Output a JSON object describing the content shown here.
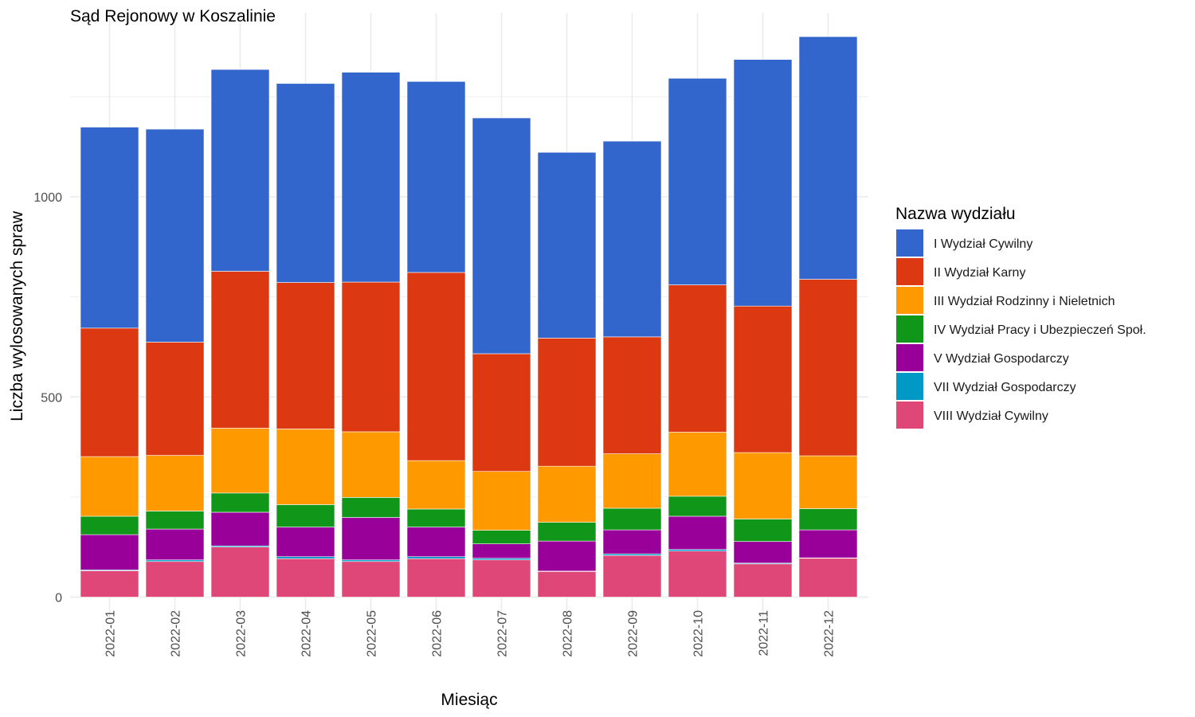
{
  "chart_data": {
    "type": "bar",
    "stacked": true,
    "title": "Sąd Rejonowy w Koszalinie",
    "xlabel": "Miesiąc",
    "ylabel": "Liczba wylosowanych spraw",
    "ylim": [
      0,
      1400
    ],
    "y_ticks": [
      0,
      500,
      1000
    ],
    "grid": true,
    "legend_position": "right",
    "legend_title": "Nazwa wydziału",
    "categories": [
      "2022-01",
      "2022-02",
      "2022-03",
      "2022-04",
      "2022-05",
      "2022-06",
      "2022-07",
      "2022-08",
      "2022-09",
      "2022-10",
      "2022-11",
      "2022-12"
    ],
    "series": [
      {
        "name": "VIII Wydział Cywilny",
        "color": "#de4778",
        "values": [
          66,
          89,
          125,
          96,
          89,
          96,
          93,
          64,
          104,
          115,
          83,
          97
        ]
      },
      {
        "name": "VII Wydział Gospodarczy",
        "color": "#0099c6",
        "values": [
          2,
          4,
          3,
          5,
          4,
          5,
          4,
          1,
          4,
          4,
          2,
          1
        ]
      },
      {
        "name": "V Wydział Gospodarczy",
        "color": "#990099",
        "values": [
          88,
          77,
          84,
          74,
          106,
          74,
          36,
          75,
          60,
          83,
          54,
          70
        ]
      },
      {
        "name": "IV Wydział Pracy i Ubezpieczeń Społ.",
        "color": "#109618",
        "values": [
          46,
          45,
          48,
          56,
          50,
          45,
          34,
          47,
          54,
          50,
          56,
          53
        ]
      },
      {
        "name": "III Wydział Rodzinny i Nieletnich",
        "color": "#ff9900",
        "values": [
          149,
          139,
          162,
          189,
          164,
          121,
          147,
          140,
          136,
          160,
          166,
          132
        ]
      },
      {
        "name": "II Wydział Karny",
        "color": "#dc3912",
        "values": [
          321,
          283,
          392,
          366,
          374,
          470,
          294,
          320,
          292,
          368,
          366,
          441
        ]
      },
      {
        "name": "I Wydział Cywilny",
        "color": "#3366cc",
        "values": [
          502,
          532,
          504,
          497,
          524,
          477,
          589,
          464,
          489,
          516,
          616,
          606
        ]
      }
    ],
    "legend_order": [
      "I Wydział Cywilny",
      "II Wydział Karny",
      "III Wydział Rodzinny i Nieletnich",
      "IV Wydział Pracy i Ubezpieczeń Społ.",
      "V Wydział Gospodarczy",
      "VII Wydział Gospodarczy",
      "VIII Wydział Cywilny"
    ]
  }
}
